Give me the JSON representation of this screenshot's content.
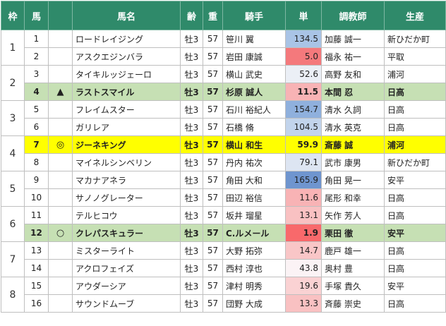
{
  "headers": [
    "枠",
    "馬",
    "",
    "馬名",
    "齢",
    "重",
    "騎手",
    "単",
    "調教師",
    "生産"
  ],
  "wakus": [
    {
      "label": "1",
      "rows": [
        0,
        1
      ]
    },
    {
      "label": "2",
      "rows": [
        2,
        3
      ]
    },
    {
      "label": "3",
      "rows": [
        4,
        5
      ]
    },
    {
      "label": "4",
      "rows": [
        6,
        7
      ]
    },
    {
      "label": "5",
      "rows": [
        8,
        9
      ]
    },
    {
      "label": "6",
      "rows": [
        10,
        11
      ]
    },
    {
      "label": "7",
      "rows": [
        12,
        13
      ]
    },
    {
      "label": "8",
      "rows": [
        14,
        15
      ]
    }
  ],
  "rows": [
    {
      "num": "1",
      "mark": "",
      "name": "ロードレイジング",
      "age": "牡3",
      "weight": "57",
      "jockey": "笹川 翼",
      "odds": "134.5",
      "trainer": "加藤 誠一",
      "breeder": "新ひだか町",
      "odds_color": "#a9c4e6",
      "highlight": ""
    },
    {
      "num": "2",
      "mark": "",
      "name": "アスクエジンバラ",
      "age": "牡3",
      "weight": "57",
      "jockey": "岩田 康誠",
      "odds": "5.0",
      "trainer": "福永 祐一",
      "breeder": "平取",
      "odds_color": "#f4797c",
      "highlight": ""
    },
    {
      "num": "3",
      "mark": "",
      "name": "タイキルッジェーロ",
      "age": "牡3",
      "weight": "57",
      "jockey": "横山 武史",
      "odds": "52.6",
      "trainer": "高野 友和",
      "breeder": "浦河",
      "odds_color": "#ebeff6",
      "highlight": ""
    },
    {
      "num": "4",
      "mark": "▲",
      "name": "ラストスマイル",
      "age": "牡3",
      "weight": "57",
      "jockey": "杉原 誠人",
      "odds": "11.5",
      "trainer": "本間 忍",
      "breeder": "日高",
      "odds_color": "#f8b3b5",
      "highlight": "green"
    },
    {
      "num": "5",
      "mark": "",
      "name": "フレイムスター",
      "age": "牡3",
      "weight": "57",
      "jockey": "石川 裕紀人",
      "odds": "154.7",
      "trainer": "清水 久詞",
      "breeder": "日高",
      "odds_color": "#8fb0dd",
      "highlight": ""
    },
    {
      "num": "6",
      "mark": "",
      "name": "ガリレア",
      "age": "牡3",
      "weight": "57",
      "jockey": "石橋 脩",
      "odds": "104.5",
      "trainer": "清水 英克",
      "breeder": "日高",
      "odds_color": "#c2d4ec",
      "highlight": ""
    },
    {
      "num": "7",
      "mark": "◎",
      "name": "ジーネキング",
      "age": "牡3",
      "weight": "57",
      "jockey": "横山 和生",
      "odds": "59.9",
      "trainer": "斎藤 誠",
      "breeder": "浦河",
      "odds_color": "#ffff00",
      "highlight": "yellow"
    },
    {
      "num": "8",
      "mark": "",
      "name": "マイネルシンベリン",
      "age": "牡3",
      "weight": "57",
      "jockey": "丹内 祐次",
      "odds": "79.1",
      "trainer": "武市 康男",
      "breeder": "新ひだか町",
      "odds_color": "#dde5f2",
      "highlight": ""
    },
    {
      "num": "9",
      "mark": "",
      "name": "マカナアネラ",
      "age": "牡3",
      "weight": "57",
      "jockey": "角田 大和",
      "odds": "165.9",
      "trainer": "角田 晃一",
      "breeder": "安平",
      "odds_color": "#6f95cf",
      "highlight": ""
    },
    {
      "num": "10",
      "mark": "",
      "name": "サノノグレーター",
      "age": "牡3",
      "weight": "57",
      "jockey": "田辺 裕信",
      "odds": "11.6",
      "trainer": "尾形 和幸",
      "breeder": "日高",
      "odds_color": "#f8b3b5",
      "highlight": ""
    },
    {
      "num": "11",
      "mark": "",
      "name": "テルヒコウ",
      "age": "牡3",
      "weight": "57",
      "jockey": "坂井 瑠星",
      "odds": "13.1",
      "trainer": "矢作 芳人",
      "breeder": "日高",
      "odds_color": "#f9c1c2",
      "highlight": ""
    },
    {
      "num": "12",
      "mark": "○",
      "name": "クレパスキュラー",
      "age": "牡3",
      "weight": "57",
      "jockey": "C.ルメール",
      "odds": "1.9",
      "trainer": "栗田 徹",
      "breeder": "安平",
      "odds_color": "#f8696b",
      "highlight": "green"
    },
    {
      "num": "13",
      "mark": "",
      "name": "ミスターライト",
      "age": "牡3",
      "weight": "57",
      "jockey": "大野 拓弥",
      "odds": "14.7",
      "trainer": "鹿戸 雄一",
      "breeder": "日高",
      "odds_color": "#f9c6c7",
      "highlight": ""
    },
    {
      "num": "14",
      "mark": "",
      "name": "アクロフェイズ",
      "age": "牡3",
      "weight": "57",
      "jockey": "西村 淳也",
      "odds": "43.8",
      "trainer": "奥村 豊",
      "breeder": "日高",
      "odds_color": "#fbf3f5",
      "highlight": ""
    },
    {
      "num": "15",
      "mark": "",
      "name": "アウダーシア",
      "age": "牡3",
      "weight": "57",
      "jockey": "津村 明秀",
      "odds": "19.6",
      "trainer": "手塚 貴久",
      "breeder": "安平",
      "odds_color": "#fad2d3",
      "highlight": ""
    },
    {
      "num": "16",
      "mark": "",
      "name": "サウンドムーブ",
      "age": "牡3",
      "weight": "57",
      "jockey": "団野 大成",
      "odds": "13.3",
      "trainer": "斉藤 崇史",
      "breeder": "日高",
      "odds_color": "#f9c1c2",
      "highlight": ""
    }
  ]
}
